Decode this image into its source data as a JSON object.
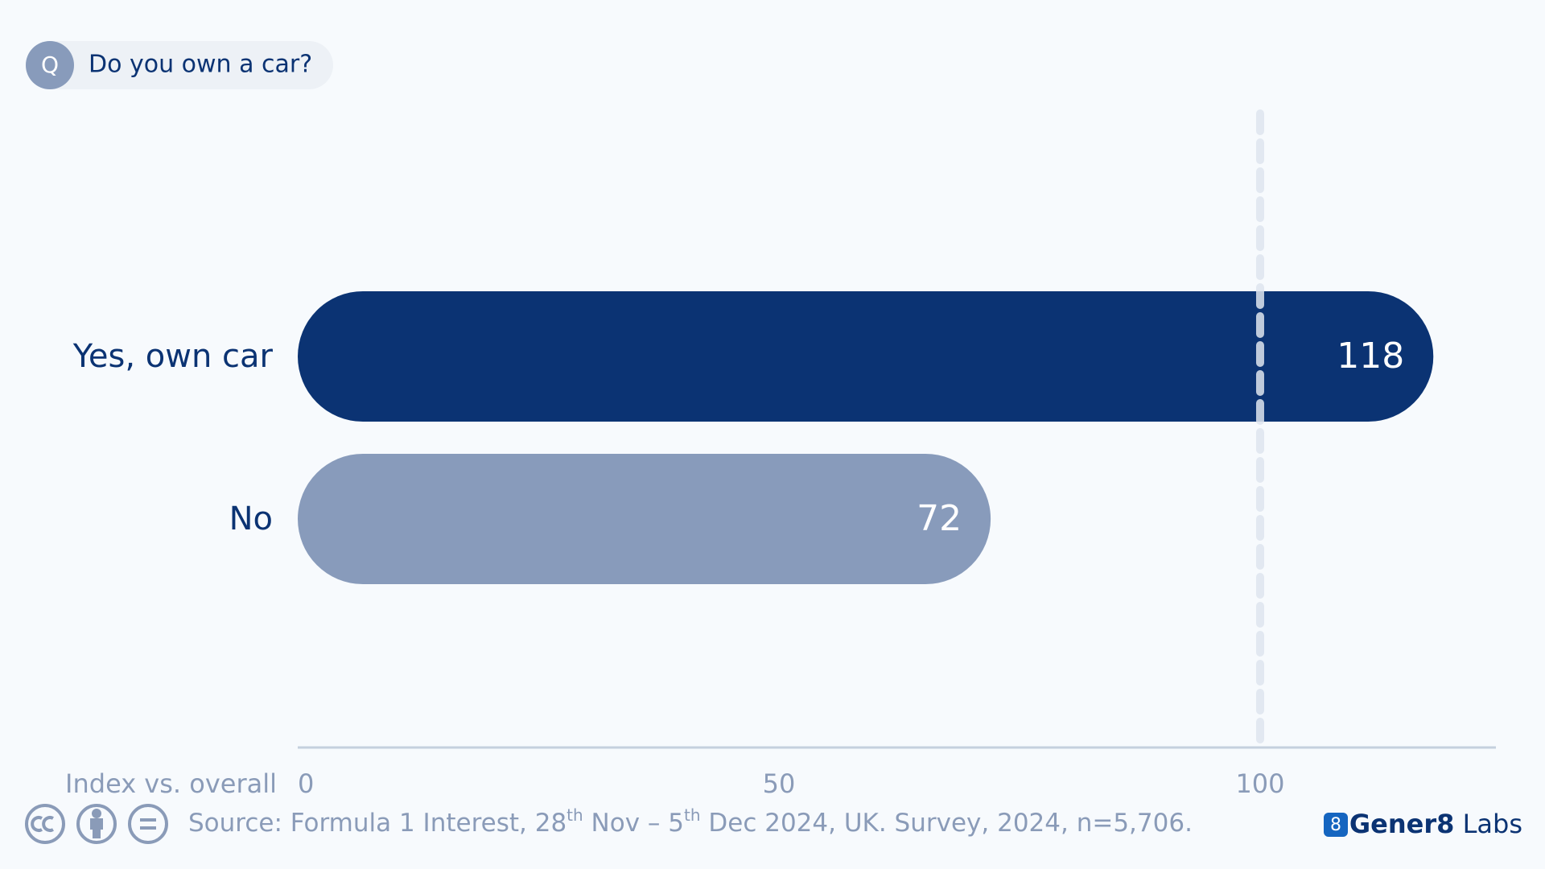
{
  "chart_data": {
    "type": "bar",
    "orientation": "horizontal",
    "question_icon": "Q",
    "question": "Do you own a car?",
    "categories": [
      "Yes, own car",
      "No"
    ],
    "values": [
      118,
      72
    ],
    "colors": [
      "#0b3373",
      "#889bbb"
    ],
    "xlabel": "Index vs. overall",
    "xlim": [
      0,
      124.5
    ],
    "xticks": [
      0,
      50,
      100
    ],
    "reference_line": 100,
    "source": [
      "Source: Formula 1 Interest, 28",
      "th",
      " Nov – 5",
      "th",
      " Dec 2024, UK. Survey, 2024, n=5,706."
    ],
    "brand_icon": "8",
    "brand": "Gener8",
    "brand_suffix": " Labs"
  }
}
